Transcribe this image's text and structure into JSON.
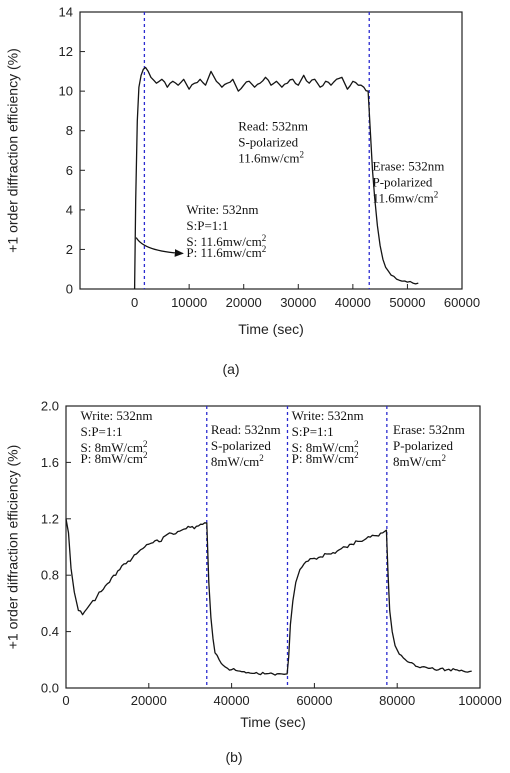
{
  "chart_data": [
    {
      "type": "line",
      "panel_label": "(a)",
      "xlabel": "Time (sec)",
      "ylabel": "+1 order diffraction efficiency (%)",
      "xlim": [
        -10000,
        60000
      ],
      "ylim": [
        0,
        14
      ],
      "xticks": [
        0,
        10000,
        20000,
        30000,
        40000,
        50000,
        60000
      ],
      "yticks": [
        0,
        2,
        4,
        6,
        8,
        10,
        12,
        14
      ],
      "grid": false,
      "vlines": [
        1800,
        43000
      ],
      "series": [
        {
          "x": [
            0,
            200,
            500,
            800,
            1200,
            1600,
            2000,
            2500,
            3000,
            4000,
            5000,
            6000,
            7000,
            8000,
            9000,
            10000,
            11000,
            12000,
            13000,
            14000,
            15000,
            16000,
            17000,
            18000,
            19000,
            20000,
            21000,
            22000,
            23000,
            24000,
            25000,
            26000,
            27000,
            28000,
            29000,
            30000,
            31000,
            32000,
            33000,
            34000,
            35000,
            36000,
            37000,
            38000,
            39000,
            40000,
            41000,
            42000,
            42800,
            43200,
            43600,
            44000,
            44500,
            45000,
            45500,
            46000,
            47000,
            48000,
            49000,
            50000,
            51000,
            52000
          ],
          "y": [
            0,
            4.5,
            8.5,
            10.2,
            10.8,
            11.1,
            11.2,
            11.0,
            10.7,
            10.4,
            10.6,
            10.2,
            10.5,
            10.3,
            10.6,
            10.1,
            10.4,
            10.6,
            10.3,
            11.0,
            10.5,
            10.2,
            10.4,
            10.6,
            10.0,
            10.3,
            10.5,
            10.2,
            10.4,
            10.7,
            10.3,
            10.5,
            10.2,
            10.4,
            10.6,
            10.3,
            10.8,
            10.4,
            10.6,
            10.2,
            10.5,
            10.3,
            10.6,
            10.7,
            10.1,
            10.5,
            10.3,
            10.2,
            10.0,
            8.0,
            6.0,
            4.6,
            3.2,
            2.2,
            1.5,
            1.1,
            0.7,
            0.5,
            0.4,
            0.35,
            0.3,
            0.3
          ]
        }
      ],
      "annotations": [
        {
          "lines": [
            "Read: 532nm",
            "S-polarized",
            "11.6mw/cm2"
          ],
          "x": 19000,
          "y": 8.0
        },
        {
          "lines": [
            "Erase: 532nm",
            "P-polarized",
            "11.6mw/cm2"
          ],
          "x": 43600,
          "y": 6.0
        },
        {
          "lines": [
            "Write: 532nm",
            "S:P=1:1",
            "S: 11.6mw/cm2",
            "P: 11.6mw/cm2"
          ],
          "x": 9500,
          "y": 3.8
        }
      ]
    },
    {
      "type": "line",
      "panel_label": "(b)",
      "xlabel": "Time (sec)",
      "ylabel": "+1 order diffraction efficiency (%)",
      "xlim": [
        0,
        100000
      ],
      "ylim": [
        0,
        2.0
      ],
      "xticks": [
        0,
        20000,
        40000,
        60000,
        80000,
        100000
      ],
      "yticks": [
        0.0,
        0.4,
        0.8,
        1.2,
        1.6,
        2.0
      ],
      "grid": false,
      "vlines": [
        34000,
        53500,
        77500
      ],
      "series": [
        {
          "x": [
            0,
            600,
            1200,
            2000,
            3000,
            4000,
            5000,
            6000,
            7000,
            8000,
            9000,
            10000,
            11000,
            12000,
            13000,
            14000,
            15000,
            16000,
            17000,
            18000,
            19000,
            20000,
            21000,
            22000,
            23000,
            24000,
            25000,
            26000,
            27000,
            28000,
            29000,
            30000,
            31000,
            32000,
            33000,
            34000,
            34500,
            35000,
            35500,
            36000,
            37000,
            38000,
            39000,
            40000,
            42000,
            44000,
            46000,
            48000,
            50000,
            52000,
            53400,
            53800,
            54200,
            54800,
            55500,
            56500,
            57500,
            58500,
            60000,
            61500,
            63000,
            64500,
            66000,
            67500,
            69000,
            70500,
            72000,
            73500,
            75000,
            76500,
            77400,
            77800,
            78200,
            78800,
            79500,
            80500,
            82000,
            84000,
            86000,
            88000,
            90000,
            92000,
            94000,
            96000,
            98000
          ],
          "y": [
            1.2,
            1.1,
            0.85,
            0.68,
            0.55,
            0.52,
            0.56,
            0.6,
            0.62,
            0.68,
            0.7,
            0.74,
            0.78,
            0.8,
            0.84,
            0.88,
            0.9,
            0.92,
            0.95,
            0.98,
            1.0,
            1.02,
            1.03,
            1.05,
            1.04,
            1.08,
            1.1,
            1.09,
            1.11,
            1.12,
            1.13,
            1.14,
            1.13,
            1.15,
            1.16,
            1.17,
            0.75,
            0.5,
            0.35,
            0.25,
            0.2,
            0.16,
            0.14,
            0.13,
            0.12,
            0.11,
            0.11,
            0.1,
            0.1,
            0.1,
            0.1,
            0.22,
            0.45,
            0.62,
            0.75,
            0.84,
            0.88,
            0.9,
            0.92,
            0.93,
            0.95,
            0.96,
            0.98,
            1.0,
            1.02,
            1.04,
            1.05,
            1.07,
            1.08,
            1.1,
            1.12,
            0.8,
            0.55,
            0.4,
            0.3,
            0.24,
            0.2,
            0.17,
            0.15,
            0.14,
            0.13,
            0.13,
            0.13,
            0.12,
            0.12
          ]
        }
      ],
      "annotations": [
        {
          "lines": [
            "Write: 532nm",
            "S:P=1:1",
            "S: 8mW/cm2",
            "P: 8mW/cm2"
          ],
          "x": 3500,
          "y": 1.9
        },
        {
          "lines": [
            "Read: 532nm",
            "S-polarized",
            "8mW/cm2"
          ],
          "x": 35000,
          "y": 1.8
        },
        {
          "lines": [
            "Write: 532nm",
            "S:P=1:1",
            "S: 8mW/cm2",
            "P: 8mW/cm2"
          ],
          "x": 54500,
          "y": 1.9
        },
        {
          "lines": [
            "Erase: 532nm",
            "P-polarized",
            "8mW/cm2"
          ],
          "x": 79000,
          "y": 1.8
        }
      ]
    }
  ]
}
